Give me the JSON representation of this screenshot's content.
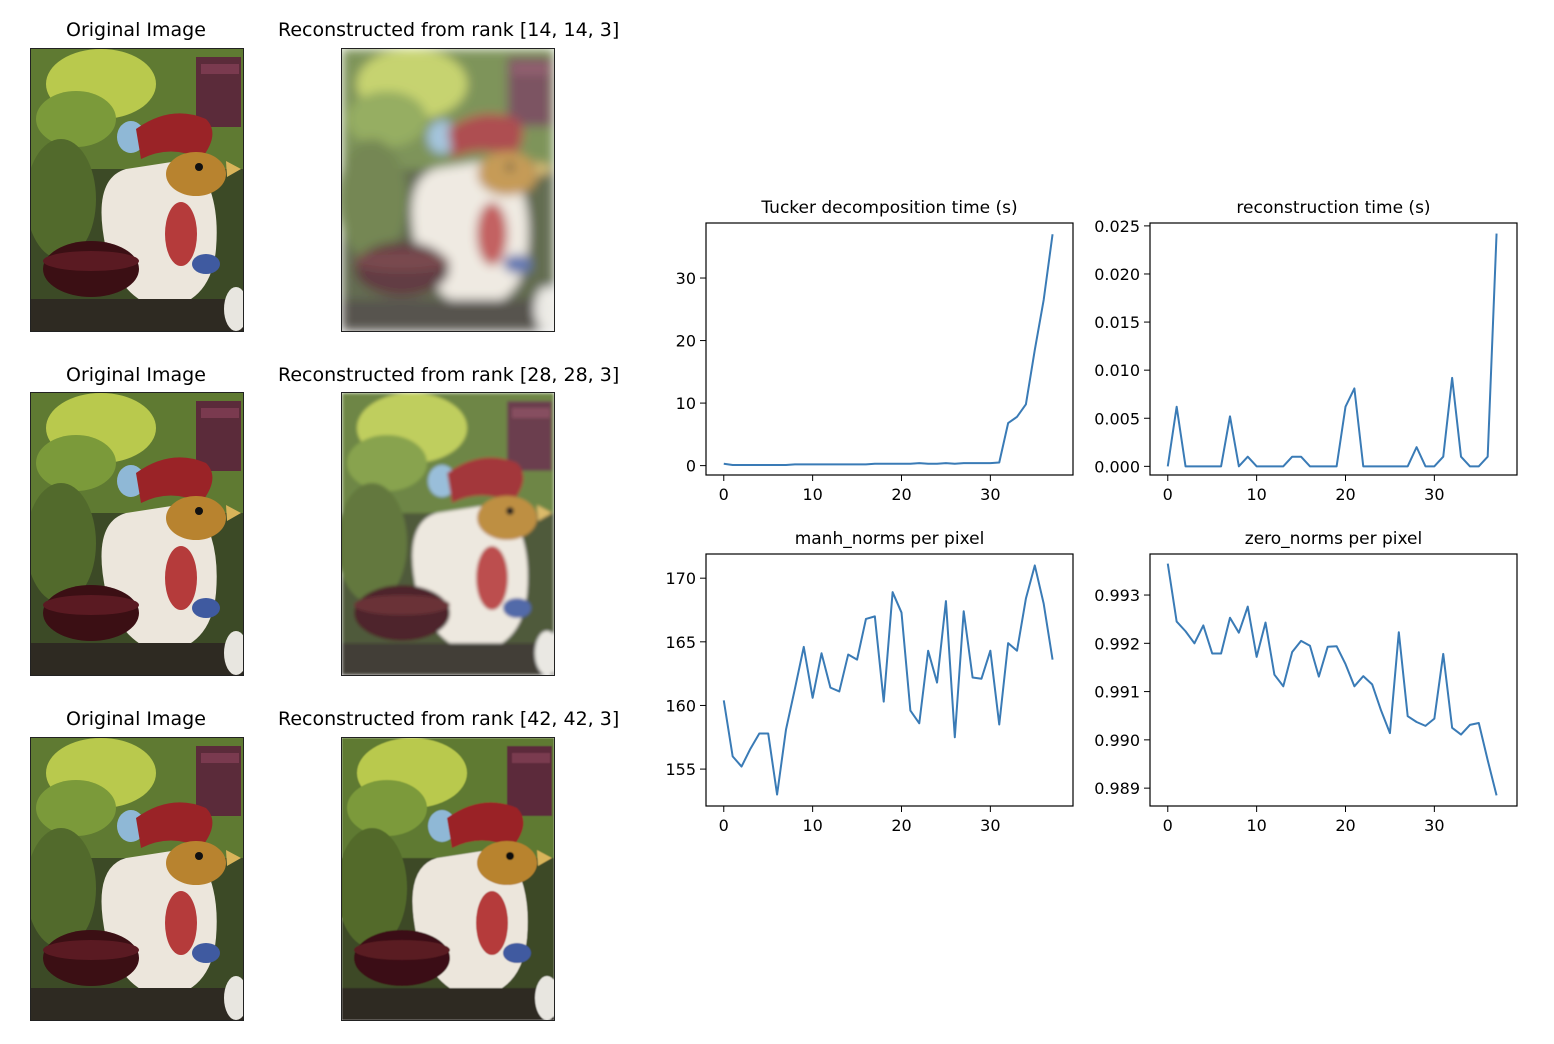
{
  "images": [
    {
      "left_title": "Original Image",
      "right_title": "Reconstructed from rank [14, 14, 3]"
    },
    {
      "left_title": "Original Image",
      "right_title": "Reconstructed from rank [28, 28, 3]"
    },
    {
      "left_title": "Original Image",
      "right_title": "Reconstructed from rank [42, 42, 3]"
    }
  ],
  "colors": {
    "line": "#3a7bb6",
    "axis": "#000000"
  },
  "chart_data": [
    {
      "type": "line",
      "title": "Tucker decomposition time (s)",
      "xlabel": "",
      "ylabel": "",
      "xlim": [
        -2,
        39.3
      ],
      "ylim": [
        -1.5,
        38.8
      ],
      "xticks": [
        0,
        10,
        20,
        30
      ],
      "yticks": [
        0,
        10,
        20,
        30
      ],
      "ytick_labels": [
        "0",
        "10",
        "20",
        "30"
      ],
      "grid": false,
      "series": [
        {
          "values": [
            0.3,
            0.1,
            0.1,
            0.1,
            0.1,
            0.1,
            0.1,
            0.1,
            0.2,
            0.2,
            0.2,
            0.2,
            0.2,
            0.2,
            0.2,
            0.2,
            0.2,
            0.3,
            0.3,
            0.3,
            0.3,
            0.3,
            0.4,
            0.3,
            0.3,
            0.4,
            0.3,
            0.4,
            0.4,
            0.4,
            0.4,
            0.5,
            6.8,
            7.8,
            9.8,
            18.5,
            26.5,
            37.0
          ]
        }
      ]
    },
    {
      "type": "line",
      "title": "reconstruction time (s)",
      "xlabel": "",
      "ylabel": "",
      "xlim": [
        -2,
        39.3
      ],
      "ylim": [
        -0.0009,
        0.0253
      ],
      "xticks": [
        0,
        10,
        20,
        30
      ],
      "yticks": [
        0.0,
        0.005,
        0.01,
        0.015,
        0.02,
        0.025
      ],
      "ytick_labels": [
        "0.000",
        "0.005",
        "0.010",
        "0.015",
        "0.020",
        "0.025"
      ],
      "grid": false,
      "series": [
        {
          "values": [
            0.0,
            0.0062,
            0.0,
            0.0,
            0.0,
            0.0,
            0.0,
            0.0052,
            0.0,
            0.001,
            0.0,
            0.0,
            0.0,
            0.0,
            0.001,
            0.001,
            0.0,
            0.0,
            0.0,
            0.0,
            0.0062,
            0.0081,
            0.0,
            0.0,
            0.0,
            0.0,
            0.0,
            0.0,
            0.002,
            0.0,
            0.0,
            0.001,
            0.0092,
            0.001,
            0.0,
            0.0,
            0.001,
            0.0242
          ]
        }
      ]
    },
    {
      "type": "line",
      "title": "manh_norms per pixel",
      "xlabel": "",
      "ylabel": "",
      "xlim": [
        -2,
        39.3
      ],
      "ylim": [
        152.1,
        171.9
      ],
      "xticks": [
        0,
        10,
        20,
        30
      ],
      "yticks": [
        155,
        160,
        165,
        170
      ],
      "ytick_labels": [
        "155",
        "160",
        "165",
        "170"
      ],
      "grid": false,
      "series": [
        {
          "values": [
            160.4,
            156.0,
            155.2,
            156.6,
            157.8,
            157.8,
            153.0,
            158.1,
            161.3,
            164.6,
            160.6,
            164.1,
            161.4,
            161.1,
            164.0,
            163.6,
            166.8,
            167.0,
            160.3,
            168.9,
            167.3,
            159.6,
            158.6,
            164.3,
            161.8,
            168.2,
            157.5,
            167.4,
            162.2,
            162.1,
            164.3,
            158.5,
            164.9,
            164.3,
            168.4,
            171.0,
            168.0,
            163.6
          ]
        }
      ]
    },
    {
      "type": "line",
      "title": "zero_norms per pixel",
      "xlabel": "",
      "ylabel": "",
      "xlim": [
        -2,
        39.3
      ],
      "ylim": [
        0.98863,
        0.99385
      ],
      "xticks": [
        0,
        10,
        20,
        30
      ],
      "yticks": [
        0.989,
        0.99,
        0.991,
        0.992,
        0.993
      ],
      "ytick_labels": [
        "0.989",
        "0.990",
        "0.991",
        "0.992",
        "0.993"
      ],
      "grid": false,
      "series": [
        {
          "values": [
            0.99365,
            0.99245,
            0.99225,
            0.992,
            0.99237,
            0.99179,
            0.99179,
            0.99253,
            0.99222,
            0.99276,
            0.99172,
            0.99243,
            0.99135,
            0.99111,
            0.99182,
            0.99205,
            0.99195,
            0.99131,
            0.99193,
            0.99194,
            0.99157,
            0.99111,
            0.99132,
            0.99115,
            0.99061,
            0.99014,
            0.99223,
            0.99049,
            0.99037,
            0.99029,
            0.99044,
            0.99178,
            0.99025,
            0.99011,
            0.99031,
            0.99035,
            0.98958,
            0.98885
          ]
        }
      ]
    }
  ]
}
